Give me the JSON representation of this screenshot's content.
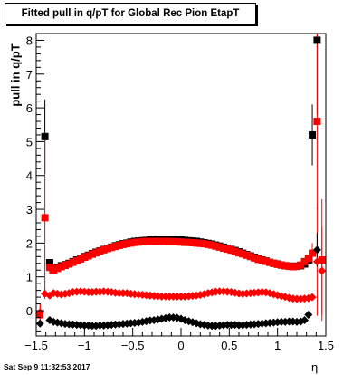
{
  "chart_data": {
    "type": "scatter",
    "title": "Fitted pull in q/pT for Global Rec Pion EtapT",
    "xlabel": "η",
    "ylabel": "pull in q/pT",
    "xlim": [
      -1.5,
      1.5
    ],
    "ylim": [
      -0.75,
      8.2
    ],
    "xticks": [
      -1.5,
      -1,
      -0.5,
      0,
      0.5,
      1,
      1.5
    ],
    "xtick_labels": [
      "−1.5",
      "−1",
      "−0.5",
      "0",
      "0.5",
      "1",
      "1.5"
    ],
    "yticks": [
      0,
      1,
      2,
      3,
      4,
      5,
      6,
      7,
      8
    ],
    "ytick_labels": [
      "0",
      "1",
      "2",
      "3",
      "4",
      "5",
      "6",
      "7",
      "8"
    ],
    "grid": false,
    "legend": "none",
    "x": [
      -1.46,
      -1.41,
      -1.36,
      -1.32,
      -1.28,
      -1.24,
      -1.2,
      -1.16,
      -1.12,
      -1.08,
      -1.04,
      -1.0,
      -0.96,
      -0.92,
      -0.88,
      -0.84,
      -0.8,
      -0.76,
      -0.72,
      -0.68,
      -0.64,
      -0.6,
      -0.56,
      -0.52,
      -0.48,
      -0.44,
      -0.4,
      -0.36,
      -0.32,
      -0.28,
      -0.24,
      -0.2,
      -0.16,
      -0.12,
      -0.08,
      -0.04,
      0.0,
      0.04,
      0.08,
      0.12,
      0.16,
      0.2,
      0.24,
      0.28,
      0.32,
      0.36,
      0.4,
      0.44,
      0.48,
      0.52,
      0.56,
      0.6,
      0.64,
      0.68,
      0.72,
      0.76,
      0.8,
      0.84,
      0.88,
      0.92,
      0.96,
      1.0,
      1.04,
      1.08,
      1.12,
      1.16,
      1.2,
      1.24,
      1.28,
      1.32,
      1.36,
      1.41,
      1.46
    ],
    "series": [
      {
        "color": "#000000",
        "marker": "square",
        "values": [
          null,
          5.15,
          1.42,
          1.25,
          1.28,
          1.33,
          1.36,
          1.4,
          1.45,
          1.5,
          1.55,
          1.6,
          1.64,
          1.69,
          1.73,
          1.77,
          1.81,
          1.85,
          1.88,
          1.92,
          1.95,
          1.98,
          2.0,
          2.03,
          2.05,
          2.06,
          2.07,
          2.08,
          2.09,
          2.09,
          2.1,
          2.1,
          2.1,
          2.1,
          2.1,
          2.09,
          2.09,
          2.08,
          2.07,
          2.06,
          2.05,
          2.03,
          2.01,
          1.99,
          1.97,
          1.94,
          1.91,
          1.88,
          1.85,
          1.81,
          1.78,
          1.74,
          1.7,
          1.66,
          1.62,
          1.58,
          1.54,
          1.5,
          1.47,
          1.43,
          1.4,
          1.38,
          1.35,
          1.33,
          1.32,
          1.31,
          1.32,
          1.33,
          1.38,
          1.5,
          5.2,
          8.0,
          null
        ],
        "errors": [
          null,
          1.1,
          0.1,
          0.03,
          0.02,
          0.02,
          0.02,
          0.02,
          0.02,
          0.02,
          0.02,
          0.02,
          0.02,
          0.02,
          0.02,
          0.02,
          0.02,
          0.02,
          0.02,
          0.02,
          0.02,
          0.02,
          0.02,
          0.02,
          0.02,
          0.02,
          0.02,
          0.02,
          0.02,
          0.02,
          0.02,
          0.02,
          0.02,
          0.02,
          0.02,
          0.02,
          0.02,
          0.02,
          0.02,
          0.02,
          0.02,
          0.02,
          0.02,
          0.02,
          0.02,
          0.02,
          0.02,
          0.02,
          0.02,
          0.02,
          0.02,
          0.02,
          0.02,
          0.02,
          0.02,
          0.02,
          0.02,
          0.02,
          0.02,
          0.02,
          0.02,
          0.02,
          0.02,
          0.02,
          0.02,
          0.02,
          0.02,
          0.02,
          0.03,
          0.06,
          0.9,
          2.2,
          null
        ]
      },
      {
        "color": "#ff0000",
        "marker": "square",
        "values": [
          -0.12,
          2.75,
          1.28,
          1.2,
          1.25,
          1.3,
          1.34,
          1.38,
          1.43,
          1.48,
          1.53,
          1.58,
          1.62,
          1.67,
          1.71,
          1.76,
          1.8,
          1.84,
          1.87,
          1.9,
          1.93,
          1.96,
          1.98,
          2.0,
          2.02,
          2.03,
          2.04,
          2.05,
          2.05,
          2.05,
          2.05,
          2.05,
          2.05,
          2.04,
          2.04,
          2.04,
          2.03,
          2.02,
          2.02,
          2.01,
          2.0,
          1.99,
          1.98,
          1.96,
          1.94,
          1.91,
          1.88,
          1.85,
          1.82,
          1.79,
          1.75,
          1.71,
          1.68,
          1.64,
          1.6,
          1.56,
          1.52,
          1.49,
          1.46,
          1.43,
          1.4,
          1.37,
          1.35,
          1.33,
          1.31,
          1.3,
          1.31,
          1.35,
          1.45,
          1.55,
          1.7,
          5.6,
          1.5
        ],
        "errors": [
          0.3,
          2.3,
          0.2,
          0.03,
          0.02,
          0.02,
          0.02,
          0.02,
          0.02,
          0.02,
          0.02,
          0.02,
          0.02,
          0.02,
          0.02,
          0.02,
          0.02,
          0.02,
          0.02,
          0.02,
          0.02,
          0.02,
          0.02,
          0.02,
          0.02,
          0.02,
          0.02,
          0.02,
          0.02,
          0.02,
          0.02,
          0.02,
          0.02,
          0.02,
          0.02,
          0.02,
          0.02,
          0.02,
          0.02,
          0.02,
          0.02,
          0.02,
          0.02,
          0.02,
          0.02,
          0.02,
          0.02,
          0.02,
          0.02,
          0.02,
          0.02,
          0.02,
          0.02,
          0.02,
          0.02,
          0.02,
          0.02,
          0.02,
          0.02,
          0.02,
          0.02,
          0.02,
          0.02,
          0.02,
          0.02,
          0.02,
          0.02,
          0.02,
          0.03,
          0.1,
          0.3,
          2.6,
          1.8
        ]
      },
      {
        "color": "#ff0000",
        "marker": "diamond",
        "values": [
          -0.05,
          0.5,
          0.45,
          0.52,
          0.5,
          0.48,
          0.5,
          0.52,
          0.55,
          0.56,
          0.57,
          0.56,
          0.55,
          0.55,
          0.56,
          0.56,
          0.57,
          0.56,
          0.55,
          0.53,
          0.52,
          0.52,
          0.52,
          0.5,
          0.49,
          0.48,
          0.47,
          0.46,
          0.45,
          0.44,
          0.43,
          0.42,
          0.42,
          0.42,
          0.42,
          0.42,
          0.42,
          0.42,
          0.43,
          0.44,
          0.45,
          0.47,
          0.49,
          0.52,
          0.54,
          0.56,
          0.57,
          0.57,
          0.56,
          0.55,
          0.53,
          0.51,
          0.5,
          0.51,
          0.52,
          0.53,
          0.54,
          0.55,
          0.54,
          0.52,
          0.49,
          0.46,
          0.43,
          0.41,
          0.38,
          0.36,
          0.35,
          0.35,
          0.36,
          0.37,
          0.4,
          1.45,
          1.18
        ],
        "errors": [
          0.25,
          0.15,
          0.05,
          0.02,
          0.02,
          0.02,
          0.02,
          0.02,
          0.02,
          0.02,
          0.02,
          0.02,
          0.02,
          0.02,
          0.02,
          0.02,
          0.02,
          0.02,
          0.02,
          0.02,
          0.02,
          0.02,
          0.02,
          0.02,
          0.02,
          0.02,
          0.02,
          0.02,
          0.02,
          0.02,
          0.02,
          0.02,
          0.02,
          0.02,
          0.02,
          0.02,
          0.02,
          0.02,
          0.02,
          0.02,
          0.02,
          0.02,
          0.02,
          0.02,
          0.02,
          0.02,
          0.02,
          0.02,
          0.02,
          0.02,
          0.02,
          0.02,
          0.02,
          0.02,
          0.02,
          0.02,
          0.02,
          0.02,
          0.02,
          0.02,
          0.02,
          0.02,
          0.02,
          0.02,
          0.02,
          0.02,
          0.02,
          0.02,
          0.02,
          0.05,
          0.1,
          1.6,
          1.3
        ]
      },
      {
        "color": "#000000",
        "marker": "diamond",
        "values": [
          -0.38,
          null,
          -0.28,
          -0.33,
          -0.35,
          -0.37,
          -0.39,
          -0.4,
          -0.41,
          -0.42,
          -0.43,
          -0.44,
          -0.44,
          -0.45,
          -0.45,
          -0.44,
          -0.44,
          -0.43,
          -0.42,
          -0.41,
          -0.4,
          -0.39,
          -0.38,
          -0.37,
          -0.36,
          -0.35,
          -0.33,
          -0.31,
          -0.29,
          -0.28,
          -0.26,
          -0.24,
          -0.22,
          -0.2,
          -0.2,
          -0.21,
          -0.24,
          -0.28,
          -0.31,
          -0.34,
          -0.37,
          -0.4,
          -0.42,
          -0.44,
          -0.45,
          -0.45,
          -0.44,
          -0.43,
          -0.42,
          -0.42,
          -0.42,
          -0.43,
          -0.43,
          -0.42,
          -0.41,
          -0.4,
          -0.39,
          -0.38,
          -0.37,
          -0.36,
          -0.35,
          -0.34,
          -0.33,
          -0.33,
          -0.32,
          -0.32,
          -0.33,
          -0.32,
          -0.28,
          -0.12,
          null,
          1.8,
          null
        ],
        "errors": [
          0.05,
          null,
          0.04,
          0.02,
          0.02,
          0.02,
          0.02,
          0.02,
          0.02,
          0.02,
          0.02,
          0.02,
          0.02,
          0.02,
          0.02,
          0.02,
          0.02,
          0.02,
          0.02,
          0.02,
          0.02,
          0.02,
          0.02,
          0.02,
          0.02,
          0.02,
          0.02,
          0.02,
          0.02,
          0.02,
          0.02,
          0.02,
          0.02,
          0.02,
          0.02,
          0.02,
          0.02,
          0.02,
          0.02,
          0.02,
          0.02,
          0.02,
          0.02,
          0.02,
          0.02,
          0.02,
          0.02,
          0.02,
          0.02,
          0.02,
          0.02,
          0.02,
          0.02,
          0.02,
          0.02,
          0.02,
          0.02,
          0.02,
          0.02,
          0.02,
          0.02,
          0.02,
          0.02,
          0.02,
          0.02,
          0.02,
          0.02,
          0.02,
          0.03,
          0.05,
          null,
          0.5,
          null
        ]
      }
    ]
  },
  "footer": {
    "datestamp": "Sat Sep  9 11:32:53 2017"
  }
}
